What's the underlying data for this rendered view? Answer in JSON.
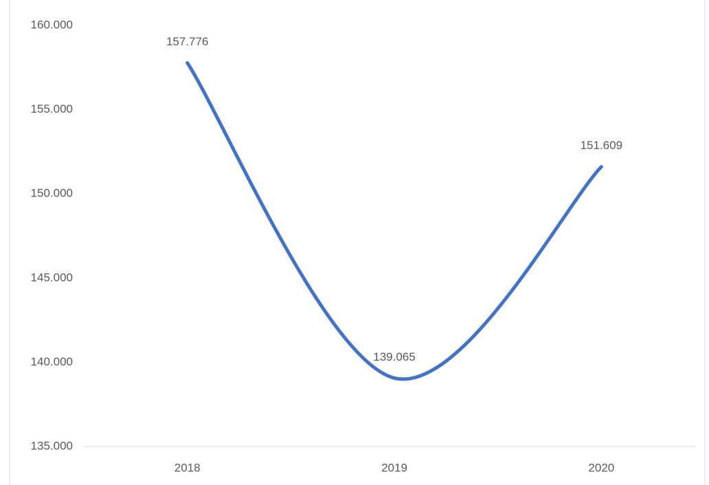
{
  "chart_data": {
    "type": "line",
    "categories": [
      "2018",
      "2019",
      "2020"
    ],
    "values": [
      157776,
      139065,
      151609
    ],
    "value_labels": [
      "157.776",
      "139.065",
      "151.609"
    ],
    "color": "#4472c4",
    "smooth": true,
    "ylim": [
      135000,
      160000
    ],
    "yticks": [
      {
        "value": 135000,
        "label": "135.000"
      },
      {
        "value": 140000,
        "label": "140.000"
      },
      {
        "value": 145000,
        "label": "145.000"
      },
      {
        "value": 150000,
        "label": "150.000"
      },
      {
        "value": 155000,
        "label": "155.000"
      },
      {
        "value": 160000,
        "label": "160.000"
      }
    ],
    "grid": false
  }
}
